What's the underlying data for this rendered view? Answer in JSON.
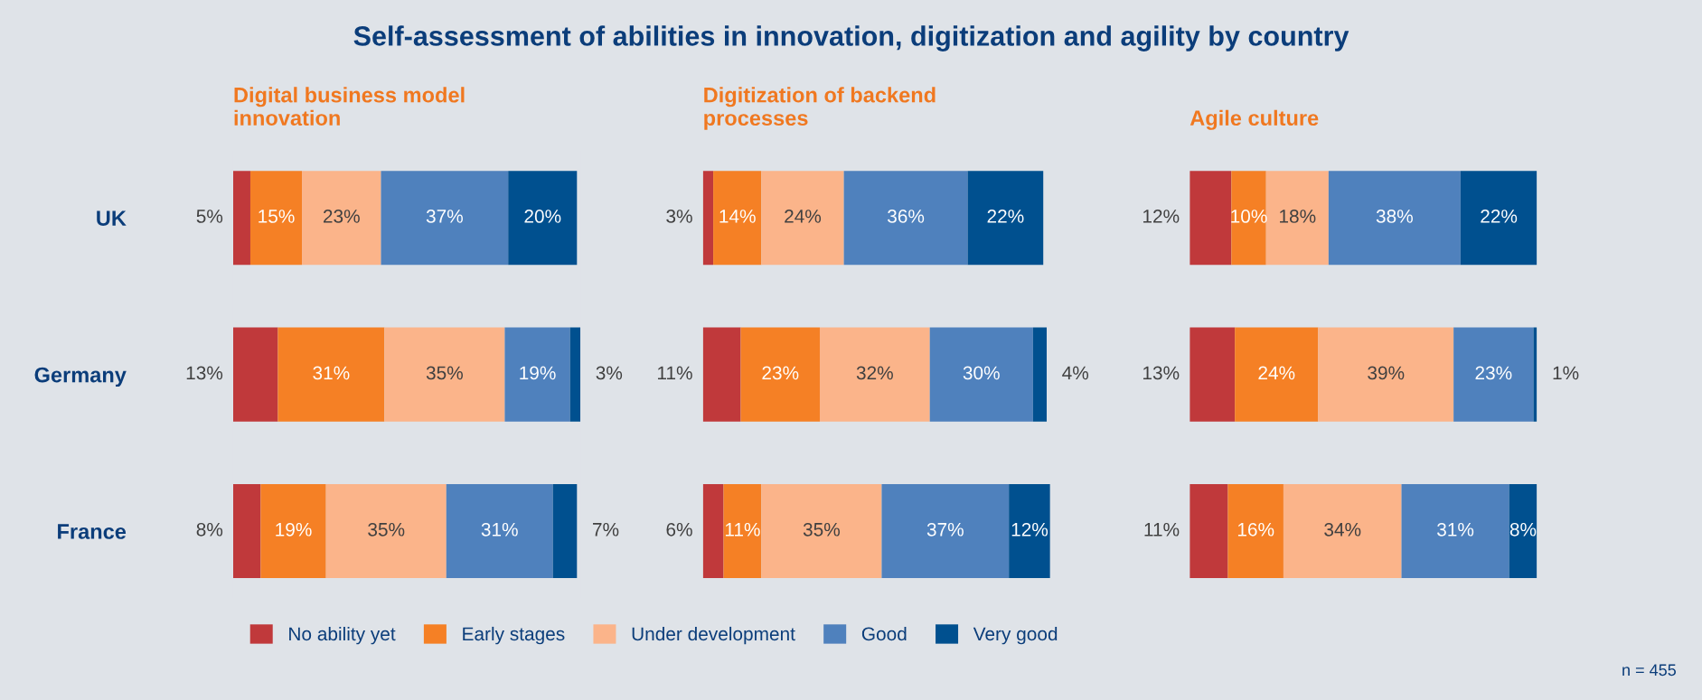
{
  "chart_data": [
    {
      "type": "bar",
      "orientation": "horizontal",
      "stacked": true,
      "tick_labels": "y",
      "legend": "bottom",
      "grid": false,
      "title": "Digital business model innovation",
      "annotations": [
        "Self-assessment of abilities in innovation, digitization and agility by country"
      ],
      "categories": [
        "UK",
        "Germany",
        "France"
      ],
      "series": [
        {
          "name": "No ability yet",
          "color": "#c0393b",
          "values": [
            5,
            13,
            8
          ],
          "value_labels": [
            "5%",
            "13%",
            "8%"
          ]
        },
        {
          "name": "Early stages",
          "color": "#f58025",
          "values": [
            15,
            31,
            19
          ],
          "value_labels": [
            "15%",
            "31%",
            "19%"
          ]
        },
        {
          "name": "Under development",
          "color": "#fbb48a",
          "values": [
            23,
            35,
            35
          ],
          "value_labels": [
            "23%",
            "35%",
            "35%"
          ]
        },
        {
          "name": "Good",
          "color": "#4f81bd",
          "values": [
            37,
            19,
            31
          ],
          "value_labels": [
            "37%",
            "19%",
            "31%"
          ]
        },
        {
          "name": "Very good",
          "color": "#00508f",
          "values": [
            20,
            3,
            7
          ],
          "value_labels": [
            "20%",
            "3%",
            "7%"
          ]
        }
      ]
    },
    {
      "type": "bar",
      "orientation": "horizontal",
      "stacked": true,
      "tick_labels": false,
      "grid": false,
      "title": "Digitization of backend processes",
      "categories": [
        null,
        null,
        null
      ],
      "series": [
        {
          "color": "#c0393b",
          "values": [
            3,
            11,
            6
          ],
          "value_labels": [
            "3%",
            "11%",
            "6%"
          ]
        },
        {
          "color": "#f58025",
          "values": [
            14,
            23,
            11
          ],
          "value_labels": [
            "14%",
            "23%",
            "11%"
          ]
        },
        {
          "color": "#fbb48a",
          "values": [
            24,
            32,
            35
          ],
          "value_labels": [
            "24%",
            "32%",
            "35%"
          ]
        },
        {
          "color": "#4f81bd",
          "values": [
            36,
            30,
            37
          ],
          "value_labels": [
            "36%",
            "30%",
            "37%"
          ]
        },
        {
          "color": "#00508f",
          "values": [
            22,
            4,
            12
          ],
          "value_labels": [
            "22%",
            "4%",
            "12%"
          ]
        }
      ]
    },
    {
      "type": "bar",
      "orientation": "horizontal",
      "stacked": true,
      "tick_labels": false,
      "grid": false,
      "title": "Agile culture",
      "annotations": [
        "n = 455"
      ],
      "categories": [
        null,
        null,
        null
      ],
      "series": [
        {
          "color": "#c0393b",
          "values": [
            12,
            13,
            11
          ],
          "value_labels": [
            "12%",
            "13%",
            "11%"
          ]
        },
        {
          "color": "#f58025",
          "values": [
            10,
            24,
            16
          ],
          "value_labels": [
            "10%",
            "24%",
            "16%"
          ]
        },
        {
          "color": "#fbb48a",
          "values": [
            18,
            39,
            34
          ],
          "value_labels": [
            "18%",
            "39%",
            "34%"
          ]
        },
        {
          "color": "#4f81bd",
          "values": [
            38,
            23,
            31
          ],
          "value_labels": [
            "38%",
            "23%",
            "31%"
          ]
        },
        {
          "color": "#00508f",
          "values": [
            22,
            1,
            8
          ],
          "value_labels": [
            "22%",
            "1%",
            "8%"
          ]
        }
      ]
    }
  ]
}
